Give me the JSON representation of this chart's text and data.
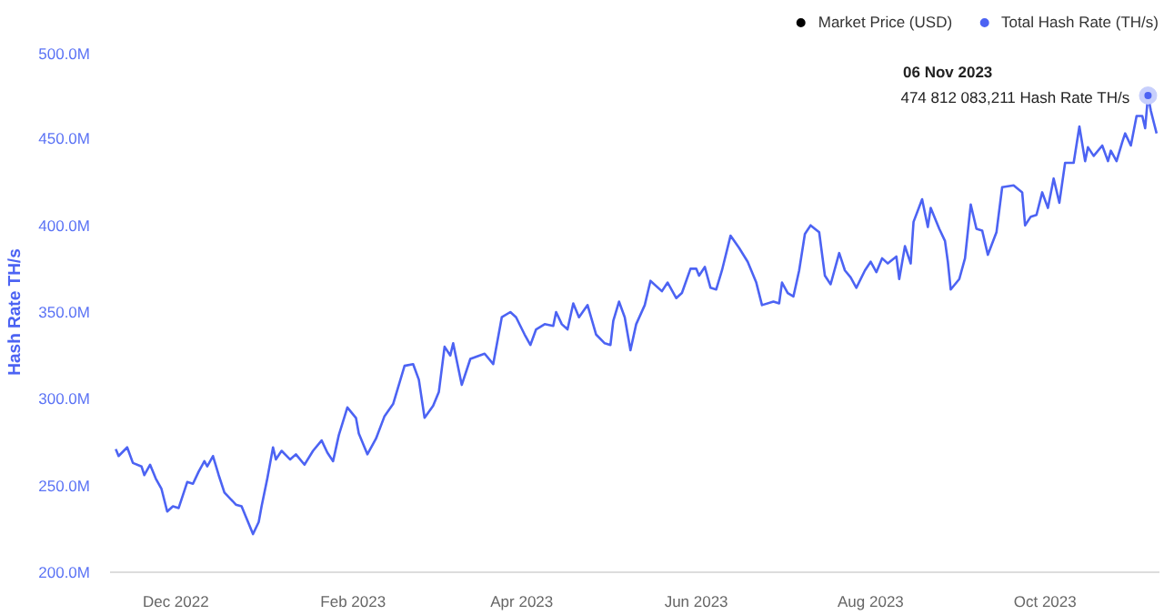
{
  "chart_data": {
    "type": "line",
    "ylabel": "Hash Rate TH/s",
    "x": [
      "2022-11-10",
      "2022-11-11",
      "2022-11-14",
      "2022-11-16",
      "2022-11-19",
      "2022-11-20",
      "2022-11-22",
      "2022-11-24",
      "2022-11-26",
      "2022-11-28",
      "2022-11-30",
      "2022-12-02",
      "2022-12-05",
      "2022-12-07",
      "2022-12-09",
      "2022-12-11",
      "2022-12-12",
      "2022-12-14",
      "2022-12-16",
      "2022-12-18",
      "2022-12-22",
      "2022-12-24",
      "2022-12-26",
      "2022-12-28",
      "2022-12-30",
      "2022-12-31",
      "2023-01-02",
      "2023-01-04",
      "2023-01-05",
      "2023-01-07",
      "2023-01-10",
      "2023-01-12",
      "2023-01-15",
      "2023-01-18",
      "2023-01-21",
      "2023-01-23",
      "2023-01-25",
      "2023-01-27",
      "2023-01-30",
      "2023-02-02",
      "2023-02-03",
      "2023-02-06",
      "2023-02-09",
      "2023-02-12",
      "2023-02-15",
      "2023-02-19",
      "2023-02-22",
      "2023-02-24",
      "2023-02-26",
      "2023-03-01",
      "2023-03-03",
      "2023-03-05",
      "2023-03-07",
      "2023-03-08",
      "2023-03-11",
      "2023-03-14",
      "2023-03-19",
      "2023-03-22",
      "2023-03-25",
      "2023-03-28",
      "2023-03-30",
      "2023-04-02",
      "2023-04-04",
      "2023-04-06",
      "2023-04-09",
      "2023-04-12",
      "2023-04-13",
      "2023-04-15",
      "2023-04-17",
      "2023-04-19",
      "2023-04-21",
      "2023-04-24",
      "2023-04-27",
      "2023-04-30",
      "2023-05-02",
      "2023-05-03",
      "2023-05-05",
      "2023-05-07",
      "2023-05-09",
      "2023-05-11",
      "2023-05-14",
      "2023-05-16",
      "2023-05-20",
      "2023-05-22",
      "2023-05-25",
      "2023-05-27",
      "2023-05-30",
      "2023-06-01",
      "2023-06-02",
      "2023-06-04",
      "2023-06-06",
      "2023-06-08",
      "2023-06-10",
      "2023-06-13",
      "2023-06-16",
      "2023-06-19",
      "2023-06-22",
      "2023-06-24",
      "2023-06-28",
      "2023-06-30",
      "2023-07-01",
      "2023-07-03",
      "2023-07-05",
      "2023-07-07",
      "2023-07-09",
      "2023-07-11",
      "2023-07-14",
      "2023-07-16",
      "2023-07-18",
      "2023-07-21",
      "2023-07-23",
      "2023-07-25",
      "2023-07-27",
      "2023-07-30",
      "2023-08-01",
      "2023-08-03",
      "2023-08-05",
      "2023-08-07",
      "2023-08-10",
      "2023-08-11",
      "2023-08-13",
      "2023-08-15",
      "2023-08-16",
      "2023-08-19",
      "2023-08-21",
      "2023-08-22",
      "2023-08-25",
      "2023-08-27",
      "2023-08-28",
      "2023-08-29",
      "2023-09-01",
      "2023-09-03",
      "2023-09-05",
      "2023-09-07",
      "2023-09-09",
      "2023-09-11",
      "2023-09-14",
      "2023-09-16",
      "2023-09-20",
      "2023-09-23",
      "2023-09-24",
      "2023-09-26",
      "2023-09-28",
      "2023-09-30",
      "2023-10-02",
      "2023-10-04",
      "2023-10-06",
      "2023-10-08",
      "2023-10-11",
      "2023-10-13",
      "2023-10-15",
      "2023-10-16",
      "2023-10-18",
      "2023-10-21",
      "2023-10-23",
      "2023-10-24",
      "2023-10-26",
      "2023-10-28",
      "2023-10-29",
      "2023-10-31",
      "2023-11-02",
      "2023-11-04",
      "2023-11-05",
      "2023-11-06",
      "2023-11-07",
      "2023-11-09"
    ],
    "series": [
      {
        "name": "Market Price (USD)",
        "color": "#000000",
        "values": [
          null,
          null,
          null,
          null,
          null,
          null,
          null,
          null,
          null,
          null,
          null,
          null,
          null,
          null,
          null,
          null,
          null,
          null,
          null,
          null,
          null,
          null,
          null,
          null,
          null,
          null,
          null,
          null,
          null,
          null,
          null,
          null,
          null,
          null,
          null,
          null,
          null,
          null,
          null,
          null,
          null,
          null,
          null,
          null,
          null,
          null,
          null,
          null,
          null,
          null,
          null,
          null,
          null,
          null,
          null,
          null,
          null,
          null,
          null,
          null,
          null,
          null,
          null,
          null,
          null,
          null,
          null,
          null,
          null,
          null,
          null,
          null,
          null,
          null,
          null,
          null,
          null,
          null,
          null,
          null,
          null,
          null,
          null,
          null,
          null,
          null,
          null,
          null,
          null,
          null,
          null,
          null,
          null,
          null,
          null,
          null,
          null,
          null,
          null,
          null,
          null,
          null,
          null,
          null,
          null,
          null,
          null,
          null,
          null,
          null,
          null,
          null,
          null,
          null,
          null,
          null,
          null,
          null,
          null,
          null,
          null,
          null,
          null,
          null,
          null,
          null,
          null,
          null,
          null,
          null,
          null,
          null,
          null,
          null,
          null,
          null,
          null,
          null,
          null,
          null,
          null,
          null,
          null,
          null,
          null,
          null,
          null,
          null,
          null,
          null,
          null,
          null,
          null,
          null,
          null,
          null,
          null,
          null,
          null,
          null,
          null,
          null,
          null,
          null,
          null,
          null
        ]
      },
      {
        "name": "Total Hash Rate (TH/s)",
        "color": "#4c63f3",
        "values": [
          271000000,
          267000000,
          272000000,
          263000000,
          261000000,
          256000000,
          262000000,
          254000000,
          248000000,
          235000000,
          238000000,
          237000000,
          252000000,
          251000000,
          258000000,
          264000000,
          261000000,
          267000000,
          256000000,
          246000000,
          239000000,
          238000000,
          230000000,
          222000000,
          229000000,
          238000000,
          254000000,
          272000000,
          265000000,
          270000000,
          265000000,
          268000000,
          262000000,
          270000000,
          276000000,
          269000000,
          264000000,
          279000000,
          295000000,
          289000000,
          280000000,
          268000000,
          277000000,
          290000000,
          297000000,
          319000000,
          320000000,
          311000000,
          289000000,
          296000000,
          304000000,
          330000000,
          325000000,
          332000000,
          308000000,
          323000000,
          326000000,
          320000000,
          347000000,
          350000000,
          347000000,
          337000000,
          331000000,
          340000000,
          343000000,
          342000000,
          350000000,
          343000000,
          340000000,
          355000000,
          347000000,
          354000000,
          337000000,
          332000000,
          331000000,
          345000000,
          356000000,
          347000000,
          328000000,
          343000000,
          354000000,
          368000000,
          362000000,
          367000000,
          358000000,
          361000000,
          375000000,
          375000000,
          371000000,
          376000000,
          364000000,
          363000000,
          374000000,
          394000000,
          387000000,
          379000000,
          367000000,
          354000000,
          356000000,
          355000000,
          367000000,
          361000000,
          359000000,
          374000000,
          395000000,
          400000000,
          396000000,
          371000000,
          366000000,
          384000000,
          374000000,
          370000000,
          364000000,
          374000000,
          379000000,
          373000000,
          381000000,
          378000000,
          382000000,
          369000000,
          388000000,
          378000000,
          402000000,
          415000000,
          399000000,
          410000000,
          398000000,
          391000000,
          379000000,
          363000000,
          369000000,
          381000000,
          412000000,
          398000000,
          397000000,
          383000000,
          396000000,
          422000000,
          423000000,
          419000000,
          400000000,
          405000000,
          406000000,
          419000000,
          410000000,
          427000000,
          413000000,
          436000000,
          436000000,
          457000000,
          437000000,
          445000000,
          440000000,
          446000000,
          437000000,
          443000000,
          437000000,
          448000000,
          453000000,
          446000000,
          463000000,
          463000000,
          456000000,
          474812083.211,
          466000000,
          453000000
        ]
      }
    ],
    "xlim": [
      "2022-11-08",
      "2023-11-10"
    ],
    "xticks": [
      {
        "value": "2022-12-01",
        "label": "Dec 2022"
      },
      {
        "value": "2023-02-01",
        "label": "Feb 2023"
      },
      {
        "value": "2023-04-01",
        "label": "Apr 2023"
      },
      {
        "value": "2023-06-01",
        "label": "Jun 2023"
      },
      {
        "value": "2023-08-01",
        "label": "Aug 2023"
      },
      {
        "value": "2023-10-01",
        "label": "Oct 2023"
      }
    ],
    "ylim": [
      200000000,
      500000000
    ],
    "yticks": [
      {
        "value": 200000000,
        "label": "200.0M"
      },
      {
        "value": 250000000,
        "label": "250.0M"
      },
      {
        "value": 300000000,
        "label": "300.0M"
      },
      {
        "value": 350000000,
        "label": "350.0M"
      },
      {
        "value": 400000000,
        "label": "400.0M"
      },
      {
        "value": 450000000,
        "label": "450.0M"
      },
      {
        "value": 500000000,
        "label": "500.0M"
      }
    ],
    "grid": false,
    "legend": "top right",
    "annotations": [
      "06 Nov 2023",
      {
        "text": "474 812 083,211 Hash Rate TH/s",
        "x": "2023-11-06",
        "y": 474812083.211
      }
    ]
  }
}
